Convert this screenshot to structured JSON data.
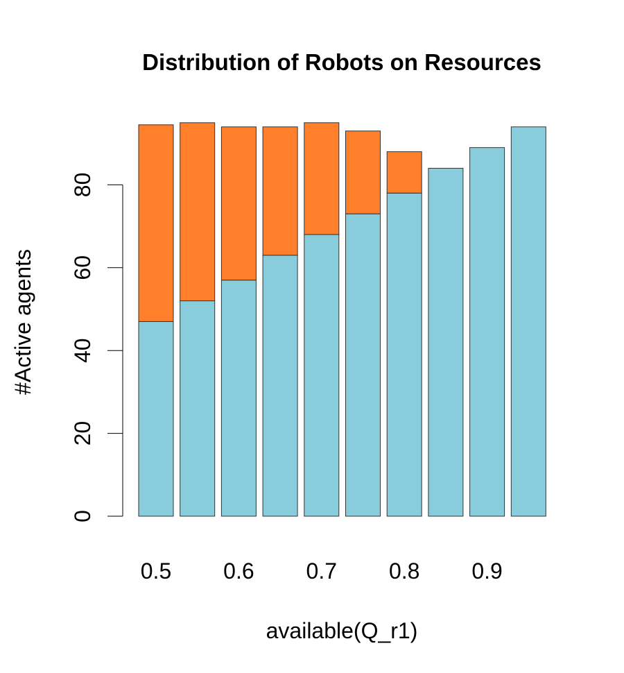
{
  "chart_data": {
    "type": "bar",
    "stacked": true,
    "title": "Distribution of Robots on Resources",
    "xlabel": "available(Q_r1)",
    "ylabel": "#Active agents",
    "categories": [
      "0.5",
      "",
      "0.6",
      "",
      "0.7",
      "",
      "0.8",
      "",
      "0.9",
      ""
    ],
    "x_tick_labels": [
      "0.5",
      "0.6",
      "0.7",
      "0.8",
      "0.9"
    ],
    "y_ticks": [
      0,
      20,
      40,
      60,
      80
    ],
    "ylim": [
      0,
      100
    ],
    "axis_range_x": [
      0.45,
      1.0
    ],
    "grid": false,
    "legend": "none",
    "series": [
      {
        "color": "#89CDDD",
        "values": [
          47,
          52,
          57,
          63,
          68,
          73,
          78,
          84,
          89,
          94
        ]
      },
      {
        "color": "#FF7F2A",
        "values": [
          47.5,
          43,
          37,
          31,
          27,
          20,
          10,
          0,
          0,
          0
        ]
      }
    ]
  }
}
